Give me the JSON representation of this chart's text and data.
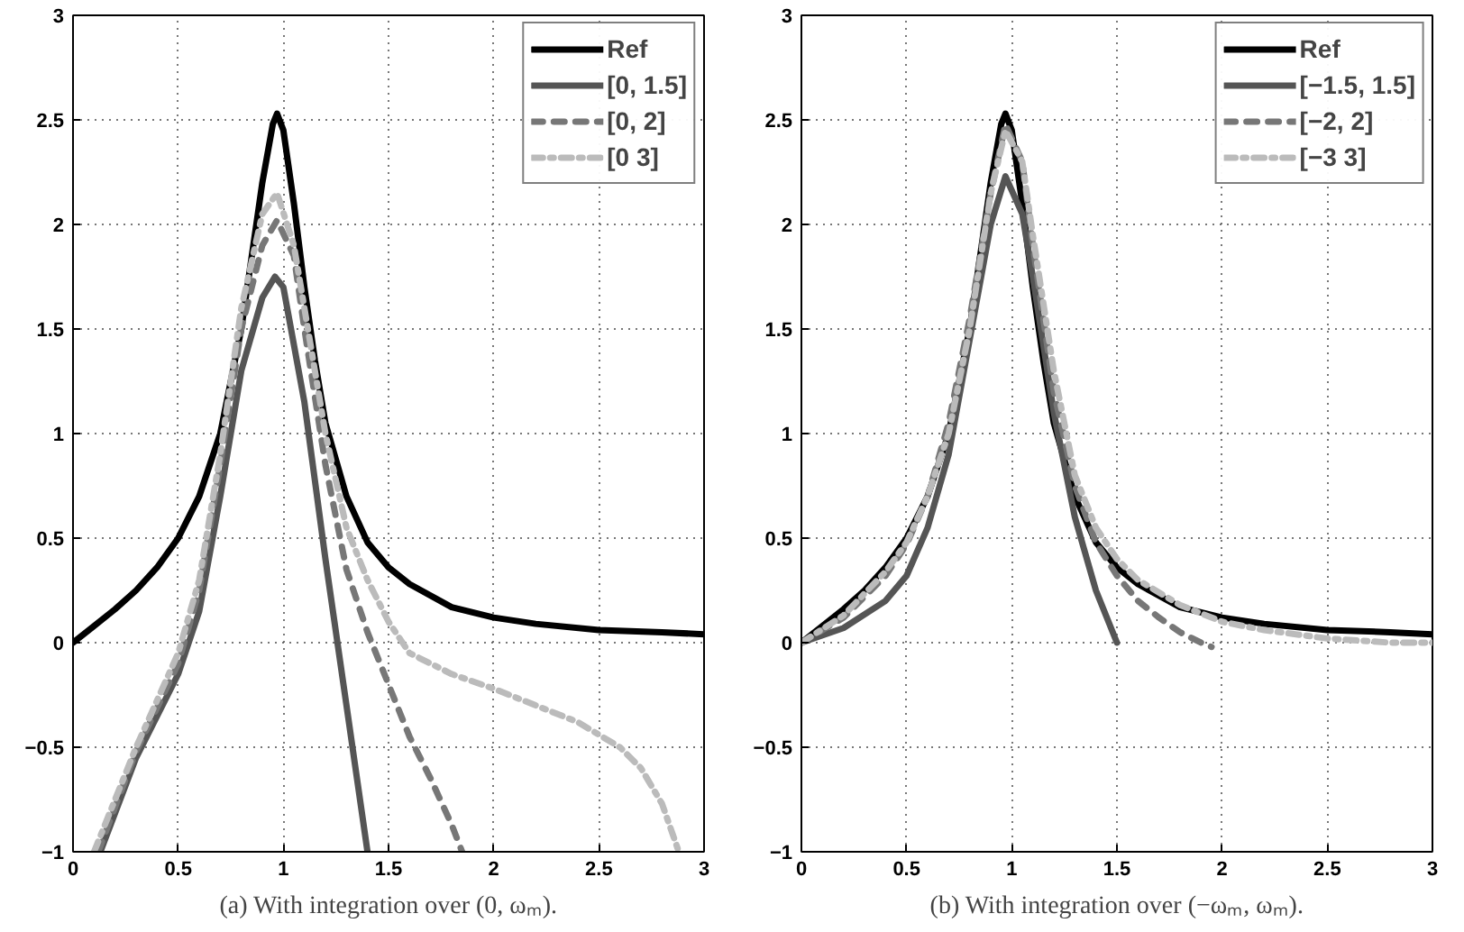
{
  "chart_data": [
    {
      "type": "line",
      "title": "(a) With integration over (0, ωₘ).",
      "xlim": [
        0,
        3
      ],
      "ylim": [
        -1,
        3
      ],
      "xticks": [
        0,
        0.5,
        1,
        1.5,
        2,
        2.5,
        3
      ],
      "yticks": [
        -1,
        -0.5,
        0,
        0.5,
        1,
        1.5,
        2,
        2.5,
        3
      ],
      "grid": true,
      "legend": "top right",
      "series": [
        {
          "name": "Ref",
          "color": "#000000",
          "line_style": "solid",
          "x": [
            0,
            0.1,
            0.2,
            0.3,
            0.4,
            0.5,
            0.6,
            0.7,
            0.8,
            0.85,
            0.9,
            0.95,
            0.97,
            1.0,
            1.05,
            1.1,
            1.15,
            1.2,
            1.3,
            1.4,
            1.5,
            1.6,
            1.8,
            2.0,
            2.2,
            2.5,
            2.8,
            3.0
          ],
          "values": [
            0,
            0.08,
            0.16,
            0.25,
            0.36,
            0.5,
            0.7,
            1.0,
            1.5,
            1.85,
            2.2,
            2.48,
            2.53,
            2.45,
            2.1,
            1.7,
            1.35,
            1.05,
            0.7,
            0.48,
            0.36,
            0.28,
            0.17,
            0.12,
            0.09,
            0.06,
            0.05,
            0.04
          ]
        },
        {
          "name": "[0, 1.5]",
          "color": "#555555",
          "line_style": "solid",
          "x": [
            0.13,
            0.3,
            0.5,
            0.6,
            0.7,
            0.8,
            0.9,
            0.96,
            1.0,
            1.1,
            1.2,
            1.3,
            1.4
          ],
          "values": [
            -1,
            -0.55,
            -0.15,
            0.15,
            0.7,
            1.3,
            1.65,
            1.75,
            1.7,
            1.15,
            0.4,
            -0.3,
            -1
          ]
        },
        {
          "name": "[0, 2]",
          "color": "#777777",
          "line_style": "dashed",
          "x": [
            0.12,
            0.3,
            0.5,
            0.6,
            0.7,
            0.8,
            0.9,
            0.97,
            1.05,
            1.1,
            1.2,
            1.3,
            1.4,
            1.5,
            1.6,
            1.7,
            1.8,
            1.85
          ],
          "values": [
            -1,
            -0.52,
            -0.1,
            0.25,
            0.85,
            1.5,
            1.9,
            2.02,
            1.85,
            1.5,
            0.85,
            0.35,
            0.05,
            -0.2,
            -0.45,
            -0.65,
            -0.87,
            -1
          ]
        },
        {
          "name": "[0 3]",
          "color": "#bbbbbb",
          "line_style": "dashdot",
          "x": [
            0.1,
            0.3,
            0.5,
            0.6,
            0.7,
            0.8,
            0.9,
            0.97,
            1.05,
            1.1,
            1.2,
            1.3,
            1.4,
            1.5,
            1.6,
            1.8,
            2.0,
            2.2,
            2.4,
            2.6,
            2.7,
            2.8,
            2.88
          ],
          "values": [
            -1,
            -0.5,
            -0.05,
            0.3,
            0.9,
            1.6,
            2.05,
            2.15,
            1.9,
            1.6,
            1.0,
            0.55,
            0.3,
            0.1,
            -0.05,
            -0.15,
            -0.22,
            -0.3,
            -0.38,
            -0.5,
            -0.6,
            -0.77,
            -1
          ]
        }
      ]
    },
    {
      "type": "line",
      "title": "(b) With integration over (−ωₘ, ωₘ).",
      "xlim": [
        0,
        3
      ],
      "ylim": [
        -1,
        3
      ],
      "xticks": [
        0,
        0.5,
        1,
        1.5,
        2,
        2.5,
        3
      ],
      "yticks": [
        -1,
        -0.5,
        0,
        0.5,
        1,
        1.5,
        2,
        2.5,
        3
      ],
      "grid": true,
      "legend": "top right",
      "series": [
        {
          "name": "Ref",
          "color": "#000000",
          "line_style": "solid",
          "x": [
            0,
            0.1,
            0.2,
            0.3,
            0.4,
            0.5,
            0.6,
            0.7,
            0.8,
            0.85,
            0.9,
            0.95,
            0.97,
            1.0,
            1.05,
            1.1,
            1.15,
            1.2,
            1.3,
            1.4,
            1.5,
            1.6,
            1.8,
            2.0,
            2.2,
            2.5,
            2.8,
            3.0
          ],
          "values": [
            0,
            0.08,
            0.16,
            0.25,
            0.36,
            0.5,
            0.7,
            1.0,
            1.5,
            1.85,
            2.2,
            2.48,
            2.53,
            2.45,
            2.1,
            1.7,
            1.35,
            1.05,
            0.7,
            0.48,
            0.36,
            0.28,
            0.17,
            0.12,
            0.09,
            0.06,
            0.05,
            0.04
          ]
        },
        {
          "name": "[−1.5, 1.5]",
          "color": "#555555",
          "line_style": "solid",
          "x": [
            0,
            0.2,
            0.4,
            0.5,
            0.6,
            0.7,
            0.8,
            0.9,
            0.97,
            1.05,
            1.1,
            1.2,
            1.3,
            1.4,
            1.5
          ],
          "values": [
            0,
            0.07,
            0.2,
            0.32,
            0.55,
            0.9,
            1.45,
            2.0,
            2.23,
            2.05,
            1.75,
            1.1,
            0.6,
            0.25,
            0
          ]
        },
        {
          "name": "[−2, 2]",
          "color": "#777777",
          "line_style": "dashed",
          "x": [
            0,
            0.2,
            0.4,
            0.5,
            0.6,
            0.7,
            0.8,
            0.9,
            0.97,
            1.05,
            1.1,
            1.2,
            1.3,
            1.4,
            1.5,
            1.6,
            1.7,
            1.8,
            1.9,
            1.95
          ],
          "values": [
            0,
            0.12,
            0.32,
            0.47,
            0.7,
            1.05,
            1.55,
            2.15,
            2.48,
            2.3,
            1.9,
            1.2,
            0.75,
            0.48,
            0.32,
            0.2,
            0.12,
            0.05,
            0.0,
            -0.02
          ]
        },
        {
          "name": "[−3 3]",
          "color": "#bbbbbb",
          "line_style": "dashdot",
          "x": [
            0,
            0.2,
            0.4,
            0.5,
            0.6,
            0.7,
            0.8,
            0.9,
            0.97,
            1.05,
            1.1,
            1.2,
            1.3,
            1.4,
            1.5,
            1.6,
            1.8,
            2.0,
            2.2,
            2.5,
            2.8,
            3.0
          ],
          "values": [
            0,
            0.13,
            0.34,
            0.48,
            0.7,
            1.0,
            1.5,
            2.15,
            2.45,
            2.3,
            1.95,
            1.3,
            0.8,
            0.55,
            0.4,
            0.3,
            0.18,
            0.1,
            0.06,
            0.02,
            0.0,
            0.0
          ]
        }
      ]
    }
  ]
}
